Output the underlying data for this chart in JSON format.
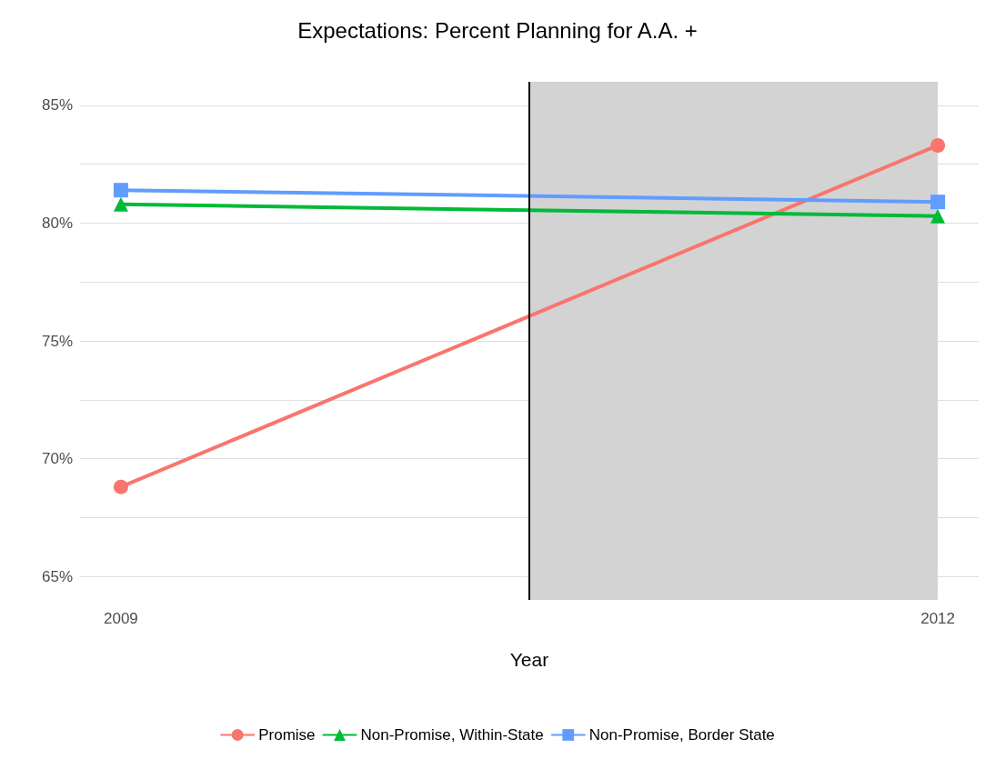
{
  "chart_data": {
    "type": "line",
    "title": "Expectations: Percent Planning for A.A. +",
    "xlabel": "Year",
    "x": [
      2009,
      2012
    ],
    "series": [
      {
        "name": "Promise",
        "color": "#f8766d",
        "marker": "circle",
        "values": [
          68.8,
          83.3
        ]
      },
      {
        "name": "Non-Promise, Within-State",
        "color": "#00ba38",
        "marker": "triangle",
        "values": [
          80.8,
          80.3
        ]
      },
      {
        "name": "Non-Promise, Border State",
        "color": "#619cff",
        "marker": "square",
        "values": [
          81.4,
          80.9
        ]
      }
    ],
    "xlim": [
      2008.85,
      2012.15
    ],
    "xticks": [
      2009,
      2012
    ],
    "ylim": [
      64,
      86
    ],
    "yticks": [
      {
        "value": 65,
        "label": "65%"
      },
      {
        "value": 67.5,
        "label": null
      },
      {
        "value": 70,
        "label": "70%"
      },
      {
        "value": 72.5,
        "label": null
      },
      {
        "value": 75,
        "label": "75%"
      },
      {
        "value": 77.5,
        "label": null
      },
      {
        "value": 80,
        "label": "80%"
      },
      {
        "value": 82.5,
        "label": null
      },
      {
        "value": 85,
        "label": "85%"
      }
    ],
    "ref_lines": [
      {
        "axis": "x",
        "value": 2010.5,
        "color": "#000000"
      }
    ],
    "bands": [
      {
        "axis": "x",
        "from": 2010.5,
        "to": 2012,
        "color": "#d3d3d3"
      }
    ],
    "grid": "y",
    "legend": "bottom",
    "line_style": "solid"
  }
}
